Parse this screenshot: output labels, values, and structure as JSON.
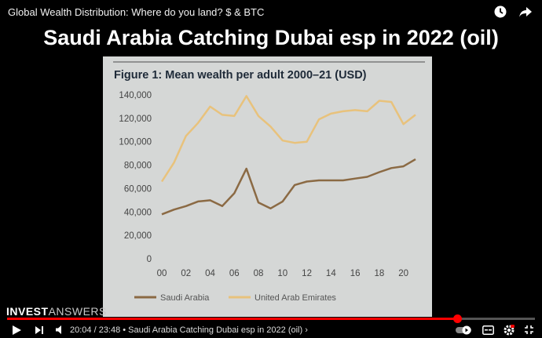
{
  "video": {
    "title": "Global Wealth Distribution: Where do you land? $ & BTC",
    "headline": "Saudi Arabia Catching Dubai esp in 2022 (oil)",
    "brand_part1": "INVEST",
    "brand_part2": "ANSWERS",
    "progress_fraction": 0.853
  },
  "player": {
    "time_current": "20:04",
    "time_total": "23:48",
    "chapter": "Saudi Arabia Catching Dubai esp in 2022 (oil)",
    "time_text": "20:04 / 23:48 • Saudi Arabia Catching Dubai esp in 2022 (oil) ›"
  },
  "colors": {
    "saudi": "#8b6a44",
    "uae": "#e8c27c",
    "accent": "#ff0000",
    "slide_bg": "#d5d7d6"
  },
  "chart_data": {
    "type": "line",
    "title": "Figure 1: Mean wealth per adult 2000–21 (USD)",
    "xlabel": "",
    "ylabel": "",
    "x": [
      2000,
      2001,
      2002,
      2003,
      2004,
      2005,
      2006,
      2007,
      2008,
      2009,
      2010,
      2011,
      2012,
      2013,
      2014,
      2015,
      2016,
      2017,
      2018,
      2019,
      2020,
      2021
    ],
    "xticks": [
      "00",
      "02",
      "04",
      "06",
      "08",
      "10",
      "12",
      "14",
      "16",
      "18",
      "20"
    ],
    "yticks": [
      "0",
      "20,000",
      "40,000",
      "60,000",
      "80,000",
      "100,000",
      "120,000",
      "140,000"
    ],
    "ylim": [
      0,
      140000
    ],
    "series": [
      {
        "name": "Saudi Arabia",
        "values": [
          38000,
          42000,
          45000,
          49000,
          50000,
          45000,
          56000,
          77000,
          48000,
          43000,
          49000,
          63000,
          66000,
          67000,
          67000,
          67000,
          68500,
          70000,
          74000,
          77500,
          79000,
          85000
        ]
      },
      {
        "name": "United Arab Emirates",
        "values": [
          66000,
          82000,
          105000,
          116000,
          130000,
          123000,
          122000,
          139000,
          122000,
          113000,
          101000,
          99000,
          100000,
          119000,
          124000,
          126000,
          127000,
          126000,
          135000,
          134000,
          115000,
          123000
        ]
      }
    ],
    "legend": "bottom",
    "grid": false
  }
}
